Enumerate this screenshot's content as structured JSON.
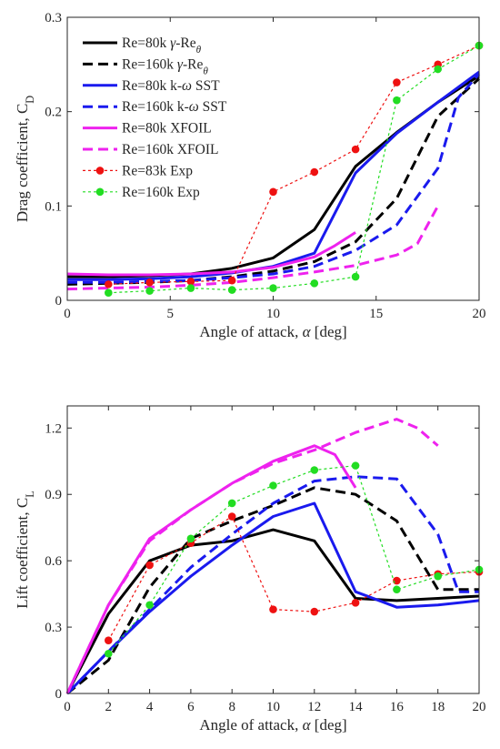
{
  "chart_data": [
    {
      "type": "line",
      "xlabel": "Angle of attack, α [deg]",
      "ylabel": "Drag coefficient, C_D",
      "xlim": [
        0,
        20
      ],
      "ylim": [
        0,
        0.3
      ],
      "xticks": [
        "0",
        "5",
        "10",
        "15",
        "20"
      ],
      "yticks": [
        "0",
        "0.1",
        "0.2",
        "0.3"
      ],
      "grid": false,
      "legend_position": "top-left",
      "series": [
        {
          "name": "Re=80k γ-Re_θ",
          "color": "#000000",
          "style": "solid",
          "x": [
            0,
            2,
            4,
            6,
            8,
            10,
            12,
            14,
            16,
            18,
            20
          ],
          "y": [
            0.025,
            0.025,
            0.026,
            0.028,
            0.034,
            0.045,
            0.075,
            0.142,
            0.178,
            0.21,
            0.238
          ]
        },
        {
          "name": "Re=160k γ-Re_θ",
          "color": "#000000",
          "style": "dashed",
          "x": [
            0,
            2,
            4,
            6,
            8,
            10,
            12,
            14,
            16,
            18,
            20
          ],
          "y": [
            0.017,
            0.018,
            0.019,
            0.021,
            0.025,
            0.031,
            0.041,
            0.062,
            0.108,
            0.195,
            0.235
          ]
        },
        {
          "name": "Re=80k k-ω SST",
          "color": "#1a1aee",
          "style": "solid",
          "x": [
            0,
            2,
            4,
            6,
            8,
            10,
            12,
            14,
            16,
            18,
            20
          ],
          "y": [
            0.022,
            0.022,
            0.023,
            0.025,
            0.029,
            0.036,
            0.05,
            0.135,
            0.177,
            0.21,
            0.242
          ]
        },
        {
          "name": "Re=160k k-ω SST",
          "color": "#1a1aee",
          "style": "dashed",
          "x": [
            0,
            2,
            4,
            6,
            8,
            10,
            12,
            14,
            16,
            18,
            19,
            20
          ],
          "y": [
            0.019,
            0.019,
            0.02,
            0.021,
            0.024,
            0.028,
            0.036,
            0.053,
            0.08,
            0.14,
            0.215,
            0.24
          ]
        },
        {
          "name": "Re=80k XFOIL",
          "color": "#ee22ee",
          "style": "solid",
          "x": [
            0,
            2,
            4,
            6,
            8,
            10,
            12,
            13,
            14
          ],
          "y": [
            0.028,
            0.027,
            0.027,
            0.028,
            0.03,
            0.035,
            0.046,
            0.058,
            0.072
          ]
        },
        {
          "name": "Re=160k XFOIL",
          "color": "#ee22ee",
          "style": "dashed",
          "x": [
            0,
            2,
            4,
            6,
            8,
            10,
            12,
            14,
            16,
            17,
            18
          ],
          "y": [
            0.012,
            0.013,
            0.014,
            0.016,
            0.019,
            0.024,
            0.03,
            0.037,
            0.048,
            0.06,
            0.1
          ]
        },
        {
          "name": "Re=83k Exp",
          "color": "#ee1111",
          "style": "dotted-marker",
          "x": [
            2,
            4,
            6,
            8,
            10,
            12,
            14,
            16,
            18,
            20
          ],
          "y": [
            0.017,
            0.019,
            0.02,
            0.021,
            0.115,
            0.136,
            0.16,
            0.231,
            0.25,
            0.27
          ]
        },
        {
          "name": "Re=160k Exp",
          "color": "#22dd22",
          "style": "dotted-marker",
          "x": [
            2,
            4,
            6,
            8,
            10,
            12,
            14,
            16,
            18,
            20
          ],
          "y": [
            0.008,
            0.01,
            0.013,
            0.011,
            0.013,
            0.018,
            0.025,
            0.212,
            0.245,
            0.27
          ]
        }
      ]
    },
    {
      "type": "line",
      "xlabel": "Angle of attack, α [deg]",
      "ylabel": "Lift coefficient, C_L",
      "xlim": [
        0,
        20
      ],
      "ylim": [
        0,
        1.3
      ],
      "xticks": [
        "0",
        "2",
        "4",
        "6",
        "8",
        "10",
        "12",
        "14",
        "16",
        "18",
        "20"
      ],
      "yticks": [
        "0",
        "0.3",
        "0.6",
        "0.9",
        "1.2"
      ],
      "grid": false,
      "series": [
        {
          "name": "Re=80k γ-Re_θ",
          "color": "#000000",
          "style": "solid",
          "x": [
            0,
            2,
            4,
            6,
            8,
            10,
            12,
            14,
            16,
            18,
            20
          ],
          "y": [
            0,
            0.36,
            0.6,
            0.67,
            0.69,
            0.74,
            0.69,
            0.43,
            0.42,
            0.43,
            0.44
          ]
        },
        {
          "name": "Re=160k γ-Re_θ",
          "color": "#000000",
          "style": "dashed",
          "x": [
            0,
            2,
            4,
            6,
            8,
            10,
            12,
            14,
            16,
            18,
            20
          ],
          "y": [
            0,
            0.15,
            0.48,
            0.7,
            0.78,
            0.85,
            0.93,
            0.9,
            0.78,
            0.47,
            0.47
          ]
        },
        {
          "name": "Re=80k k-ω SST",
          "color": "#1a1aee",
          "style": "solid",
          "x": [
            0,
            2,
            4,
            6,
            8,
            10,
            12,
            14,
            16,
            18,
            20
          ],
          "y": [
            0,
            0.19,
            0.37,
            0.53,
            0.67,
            0.8,
            0.86,
            0.46,
            0.39,
            0.4,
            0.42
          ]
        },
        {
          "name": "Re=160k k-ω SST",
          "color": "#1a1aee",
          "style": "dashed",
          "x": [
            0,
            2,
            4,
            6,
            8,
            10,
            12,
            14,
            16,
            18,
            19,
            20
          ],
          "y": [
            0,
            0.19,
            0.38,
            0.57,
            0.72,
            0.86,
            0.96,
            0.98,
            0.97,
            0.72,
            0.46,
            0.46
          ]
        },
        {
          "name": "Re=80k XFOIL",
          "color": "#ee22ee",
          "style": "solid",
          "x": [
            0,
            2,
            4,
            6,
            8,
            10,
            12,
            13,
            14
          ],
          "y": [
            0,
            0.4,
            0.7,
            0.83,
            0.95,
            1.05,
            1.12,
            1.08,
            0.93
          ]
        },
        {
          "name": "Re=160k XFOIL",
          "color": "#ee22ee",
          "style": "dashed",
          "x": [
            0,
            2,
            4,
            6,
            8,
            10,
            12,
            14,
            16,
            17,
            18
          ],
          "y": [
            0,
            0.4,
            0.69,
            0.83,
            0.95,
            1.04,
            1.1,
            1.18,
            1.24,
            1.2,
            1.12
          ]
        },
        {
          "name": "Re=83k Exp",
          "color": "#ee1111",
          "style": "dotted-marker",
          "x": [
            2,
            4,
            6,
            8,
            10,
            12,
            14,
            16,
            18,
            20
          ],
          "y": [
            0.24,
            0.58,
            0.68,
            0.8,
            0.38,
            0.37,
            0.41,
            0.51,
            0.54,
            0.55
          ]
        },
        {
          "name": "Re=160k Exp",
          "color": "#22dd22",
          "style": "dotted-marker",
          "x": [
            2,
            4,
            6,
            8,
            10,
            12,
            14,
            16,
            18,
            20
          ],
          "y": [
            0.18,
            0.4,
            0.7,
            0.86,
            0.94,
            1.01,
            1.03,
            0.47,
            0.53,
            0.56
          ]
        }
      ]
    }
  ]
}
